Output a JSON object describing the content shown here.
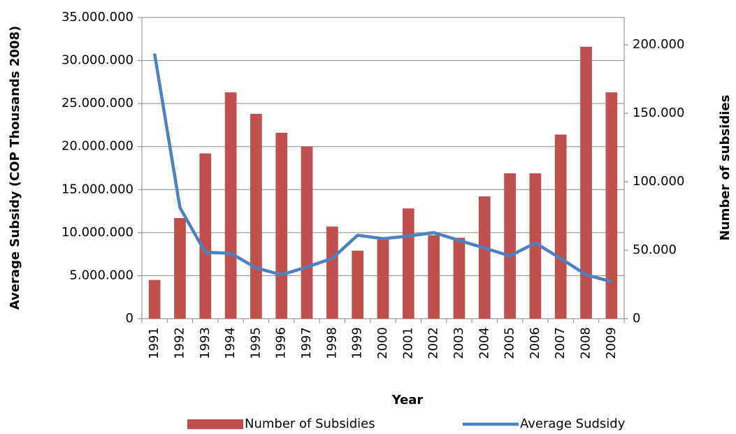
{
  "chart_data": {
    "type": "bar_line",
    "x_label": "Year",
    "y_label": "Average Subsidy (COP Thousands 2008)",
    "y2_label": "Number of subsidies",
    "categories": [
      "1991",
      "1992",
      "1993",
      "1994",
      "1995",
      "1996",
      "1997",
      "1998",
      "1999",
      "2000",
      "2001",
      "2002",
      "2003",
      "2004",
      "2005",
      "2006",
      "2007",
      "2008",
      "2009"
    ],
    "series": [
      {
        "name": "Number of Subsidies",
        "type": "bar",
        "axis": "y2",
        "color": "#c0504d",
        "values": [
          28300,
          73500,
          120700,
          165300,
          149600,
          135800,
          125700,
          67300,
          49700,
          57800,
          80500,
          61000,
          59100,
          89300,
          106200,
          106200,
          134500,
          198600,
          165300
        ]
      },
      {
        "name": "Average Sudsidy",
        "type": "line",
        "color": "#4f81bd",
        "values": [
          30800000,
          12900000,
          7700000,
          7600000,
          5900000,
          5100000,
          6000000,
          7000000,
          9700000,
          9300000,
          9600000,
          10000000,
          9100000,
          8200000,
          7300000,
          8800000,
          7000000,
          5100000,
          4300000
        ]
      }
    ],
    "ylim": [
      0,
      35000000
    ],
    "yticks": [
      0,
      {
        "value": 5000000,
        "label": "5.000.000"
      },
      {
        "value": 10000000,
        "label": "10.000.000"
      },
      {
        "value": 15000000,
        "label": "15.000.000"
      },
      {
        "value": 20000000,
        "label": "20.000.000"
      },
      {
        "value": 25000000,
        "label": "25.000.000"
      },
      {
        "value": 30000000,
        "label": "30.000.000"
      },
      {
        "value": 35000000,
        "label": "35.000.000"
      }
    ],
    "y2lim": [
      0,
      220000
    ],
    "y2ticks": [
      0,
      {
        "value": 50000,
        "label": "50.000"
      },
      {
        "value": 100000,
        "label": "100.000"
      },
      {
        "value": 150000,
        "label": "150.000"
      },
      {
        "value": 200000,
        "label": "200.000"
      }
    ],
    "grid": true,
    "legend": "bottom"
  }
}
